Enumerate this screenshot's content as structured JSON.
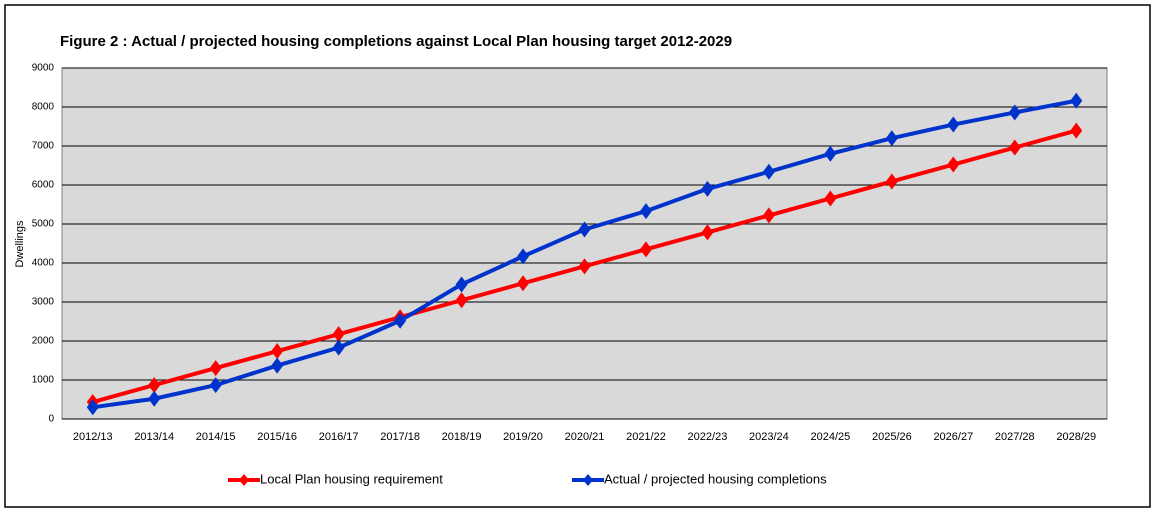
{
  "chart_data": {
    "type": "line",
    "title": "Figure 2 : Actual / projected housing completions against Local Plan housing target 2012-2029",
    "y_label": "Dwellings",
    "categories": [
      "2012/13",
      "2013/14",
      "2014/15",
      "2015/16",
      "2016/17",
      "2017/18",
      "2018/19",
      "2019/20",
      "2020/21",
      "2021/22",
      "2022/23",
      "2023/24",
      "2024/25",
      "2025/26",
      "2026/27",
      "2027/28",
      "2028/29"
    ],
    "series": [
      {
        "name": "Local Plan housing requirement",
        "color": "#ff0000",
        "values": [
          435,
          870,
          1305,
          1740,
          2175,
          2610,
          3045,
          3480,
          3915,
          4350,
          4785,
          5220,
          5655,
          6090,
          6525,
          6960,
          7395
        ]
      },
      {
        "name": "Actual / projected housing completions",
        "color": "#0033cc",
        "values": [
          300,
          520,
          870,
          1370,
          1830,
          2520,
          3450,
          4170,
          4860,
          5330,
          5900,
          6340,
          6800,
          7200,
          7550,
          7860,
          8160
        ]
      }
    ],
    "ylim": [
      0,
      9000
    ],
    "yticks": [
      0,
      1000,
      2000,
      3000,
      4000,
      5000,
      6000,
      7000,
      8000,
      9000
    ],
    "grid": true,
    "legend": "bottom"
  }
}
